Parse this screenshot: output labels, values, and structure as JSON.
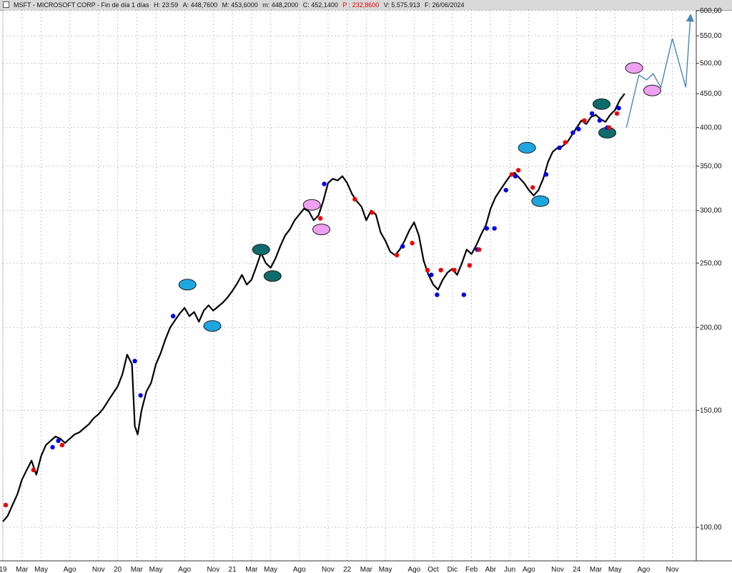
{
  "header": {
    "symbol": "MSFT - MICROSOFT CORP - Fin de día 1 días",
    "high": "H: 23:59",
    "open": "A: 448,7600",
    "max": "M: 453,6000",
    "min": "m: 448,2000",
    "close": "C: 452,1400",
    "profit": "P : 232,8600",
    "volume": "V: 5.575.913",
    "date": "F: 26/06/2024"
  },
  "colors": {
    "price": "#000000",
    "buy": "#0000ee",
    "sell": "#ee0000",
    "projection": "#4a86b8",
    "ellipse_cyan": "#1ea6e0",
    "ellipse_teal": "#0e6b6b",
    "ellipse_pink": "#f0a0f0"
  },
  "chart_data": {
    "type": "line",
    "scale": "log",
    "grid": true,
    "title": "",
    "xlabel": "",
    "ylabel": "",
    "ylim": [
      95,
      600
    ],
    "y_ticks": [
      {
        "value": 100,
        "label": "100,00"
      },
      {
        "value": 150,
        "label": "150,00"
      },
      {
        "value": 200,
        "label": "200,00"
      },
      {
        "value": 250,
        "label": "250,00"
      },
      {
        "value": 300,
        "label": "300,00"
      },
      {
        "value": 350,
        "label": "350,00"
      },
      {
        "value": 400,
        "label": "400,00"
      },
      {
        "value": 450,
        "label": "450,00"
      },
      {
        "value": 500,
        "label": "500,00"
      },
      {
        "value": 550,
        "label": "550,00"
      },
      {
        "value": 600,
        "label": "600,00"
      }
    ],
    "x_ticks": [
      {
        "t": 0.0,
        "label": "19"
      },
      {
        "t": 2.0,
        "label": "Mar"
      },
      {
        "t": 4.0,
        "label": "May"
      },
      {
        "t": 7.0,
        "label": "Ago"
      },
      {
        "t": 10.0,
        "label": "Nov"
      },
      {
        "t": 12.0,
        "label": "20"
      },
      {
        "t": 14.0,
        "label": "Mar"
      },
      {
        "t": 16.0,
        "label": "May"
      },
      {
        "t": 19.0,
        "label": "Ago"
      },
      {
        "t": 22.0,
        "label": "Nov"
      },
      {
        "t": 24.0,
        "label": "21"
      },
      {
        "t": 26.0,
        "label": "Mar"
      },
      {
        "t": 28.0,
        "label": "May"
      },
      {
        "t": 31.0,
        "label": "Ago"
      },
      {
        "t": 34.0,
        "label": "Nov"
      },
      {
        "t": 36.0,
        "label": "22"
      },
      {
        "t": 38.0,
        "label": "Mar"
      },
      {
        "t": 40.0,
        "label": "May"
      },
      {
        "t": 43.0,
        "label": "Ago"
      },
      {
        "t": 45.0,
        "label": "Oct"
      },
      {
        "t": 47.0,
        "label": "Dic"
      },
      {
        "t": 49.0,
        "label": "Feb"
      },
      {
        "t": 51.0,
        "label": "Abr"
      },
      {
        "t": 53.0,
        "label": "Jun"
      },
      {
        "t": 55.0,
        "label": "Ago"
      },
      {
        "t": 58.0,
        "label": "Nov"
      },
      {
        "t": 60.0,
        "label": "24"
      },
      {
        "t": 62.0,
        "label": "Mar"
      },
      {
        "t": 64.0,
        "label": "May"
      },
      {
        "t": 67.0,
        "label": "Ago"
      },
      {
        "t": 70.0,
        "label": "Nov"
      }
    ],
    "series": [
      {
        "points": [
          [
            0,
            102
          ],
          [
            0.5,
            104
          ],
          [
            1,
            108
          ],
          [
            1.5,
            112
          ],
          [
            2,
            118
          ],
          [
            2.5,
            122
          ],
          [
            3,
            126
          ],
          [
            3.5,
            120
          ],
          [
            4,
            128
          ],
          [
            4.5,
            133
          ],
          [
            5,
            135
          ],
          [
            5.5,
            137
          ],
          [
            6,
            136
          ],
          [
            6.5,
            134
          ],
          [
            7,
            136
          ],
          [
            7.5,
            138
          ],
          [
            8,
            139
          ],
          [
            8.5,
            141
          ],
          [
            9,
            143
          ],
          [
            9.5,
            146
          ],
          [
            10,
            148
          ],
          [
            10.5,
            151
          ],
          [
            11,
            155
          ],
          [
            11.5,
            159
          ],
          [
            12,
            163
          ],
          [
            12.5,
            170
          ],
          [
            13,
            182
          ],
          [
            13.5,
            176
          ],
          [
            13.8,
            142
          ],
          [
            14.1,
            138
          ],
          [
            14.5,
            150
          ],
          [
            15,
            160
          ],
          [
            15.5,
            165
          ],
          [
            16,
            176
          ],
          [
            16.5,
            183
          ],
          [
            17,
            192
          ],
          [
            17.5,
            200
          ],
          [
            18,
            205
          ],
          [
            18.5,
            210
          ],
          [
            19,
            214
          ],
          [
            19.5,
            208
          ],
          [
            20,
            211
          ],
          [
            20.5,
            204
          ],
          [
            21,
            212
          ],
          [
            21.5,
            216
          ],
          [
            22,
            212
          ],
          [
            22.5,
            215
          ],
          [
            23,
            218
          ],
          [
            23.5,
            222
          ],
          [
            24,
            227
          ],
          [
            24.5,
            233
          ],
          [
            25,
            240
          ],
          [
            25.5,
            232
          ],
          [
            26,
            236
          ],
          [
            26.5,
            247
          ],
          [
            27,
            259
          ],
          [
            27.5,
            250
          ],
          [
            28,
            246
          ],
          [
            28.5,
            254
          ],
          [
            29,
            265
          ],
          [
            29.5,
            275
          ],
          [
            30,
            281
          ],
          [
            30.5,
            290
          ],
          [
            31,
            296
          ],
          [
            31.5,
            302
          ],
          [
            32,
            299
          ],
          [
            32.5,
            290
          ],
          [
            33,
            295
          ],
          [
            33.5,
            310
          ],
          [
            34,
            330
          ],
          [
            34.5,
            335
          ],
          [
            35,
            333
          ],
          [
            35.5,
            338
          ],
          [
            36,
            330
          ],
          [
            36.5,
            318
          ],
          [
            37,
            310
          ],
          [
            37.5,
            304
          ],
          [
            38,
            290
          ],
          [
            38.5,
            300
          ],
          [
            39,
            296
          ],
          [
            39.5,
            278
          ],
          [
            40,
            270
          ],
          [
            40.5,
            260
          ],
          [
            41,
            257
          ],
          [
            41.5,
            262
          ],
          [
            42,
            270
          ],
          [
            42.5,
            280
          ],
          [
            43,
            288
          ],
          [
            43.5,
            275
          ],
          [
            44,
            252
          ],
          [
            44.5,
            240
          ],
          [
            45,
            232
          ],
          [
            45.5,
            228
          ],
          [
            46,
            236
          ],
          [
            46.5,
            242
          ],
          [
            47,
            245
          ],
          [
            47.5,
            240
          ],
          [
            48,
            250
          ],
          [
            48.5,
            262
          ],
          [
            49,
            258
          ],
          [
            49.5,
            266
          ],
          [
            50,
            276
          ],
          [
            50.5,
            285
          ],
          [
            51,
            302
          ],
          [
            51.5,
            314
          ],
          [
            52,
            322
          ],
          [
            52.5,
            330
          ],
          [
            53,
            338
          ],
          [
            53.5,
            342
          ],
          [
            54,
            336
          ],
          [
            54.5,
            330
          ],
          [
            55,
            322
          ],
          [
            55.5,
            316
          ],
          [
            56,
            322
          ],
          [
            56.5,
            335
          ],
          [
            57,
            355
          ],
          [
            57.5,
            368
          ],
          [
            58,
            373
          ],
          [
            58.5,
            375
          ],
          [
            59,
            380
          ],
          [
            59.5,
            390
          ],
          [
            60,
            400
          ],
          [
            60.5,
            410
          ],
          [
            61,
            405
          ],
          [
            61.5,
            415
          ],
          [
            62,
            418
          ],
          [
            62.5,
            412
          ],
          [
            63,
            408
          ],
          [
            63.5,
            418
          ],
          [
            64,
            425
          ],
          [
            64.5,
            440
          ],
          [
            65,
            450
          ]
        ]
      }
    ],
    "projection": [
      [
        65.2,
        400
      ],
      [
        66.5,
        480
      ],
      [
        67.3,
        472
      ],
      [
        68,
        482
      ],
      [
        68.8,
        460
      ],
      [
        70,
        545
      ],
      [
        71.4,
        460
      ],
      [
        71.9,
        590
      ]
    ],
    "buy_points": [
      [
        5.2,
        132
      ],
      [
        5.8,
        135
      ],
      [
        13.8,
        178
      ],
      [
        14.4,
        158
      ],
      [
        17.8,
        208
      ],
      [
        33.6,
        329
      ],
      [
        41.8,
        265
      ],
      [
        44.8,
        240
      ],
      [
        45.4,
        224
      ],
      [
        48.2,
        224
      ],
      [
        49.6,
        262
      ],
      [
        50.6,
        282
      ],
      [
        51.4,
        282
      ],
      [
        52.6,
        322
      ],
      [
        53.6,
        338
      ],
      [
        56.8,
        340
      ],
      [
        58.2,
        373
      ],
      [
        59.6,
        393
      ],
      [
        60.2,
        398
      ],
      [
        61.6,
        420
      ],
      [
        62.4,
        410
      ],
      [
        63.2,
        400
      ],
      [
        64.4,
        428
      ]
    ],
    "sell_points": [
      [
        0.3,
        108
      ],
      [
        3.2,
        122
      ],
      [
        6.2,
        133
      ],
      [
        33.2,
        292
      ],
      [
        36.8,
        312
      ],
      [
        38.6,
        298
      ],
      [
        41.2,
        257
      ],
      [
        42.8,
        268
      ],
      [
        44.4,
        244
      ],
      [
        45.8,
        244
      ],
      [
        47.2,
        244
      ],
      [
        48.8,
        248
      ],
      [
        49.8,
        262
      ],
      [
        53.2,
        340
      ],
      [
        53.9,
        345
      ],
      [
        55.4,
        325
      ],
      [
        58.8,
        380
      ],
      [
        60.8,
        410
      ],
      [
        63.4,
        400
      ],
      [
        64.2,
        420
      ]
    ],
    "ellipses": [
      {
        "t": 19.3,
        "v": 232,
        "color": "cyan"
      },
      {
        "t": 21.9,
        "v": 201,
        "color": "cyan"
      },
      {
        "t": 27.0,
        "v": 262,
        "color": "teal"
      },
      {
        "t": 28.2,
        "v": 239,
        "color": "teal"
      },
      {
        "t": 32.3,
        "v": 306,
        "color": "pink"
      },
      {
        "t": 33.3,
        "v": 281,
        "color": "pink"
      },
      {
        "t": 54.8,
        "v": 373,
        "color": "cyan"
      },
      {
        "t": 56.2,
        "v": 310,
        "color": "cyan"
      },
      {
        "t": 62.6,
        "v": 434,
        "color": "teal"
      },
      {
        "t": 63.2,
        "v": 393,
        "color": "teal"
      },
      {
        "t": 66.0,
        "v": 492,
        "color": "pink"
      },
      {
        "t": 67.9,
        "v": 455,
        "color": "pink"
      }
    ]
  }
}
